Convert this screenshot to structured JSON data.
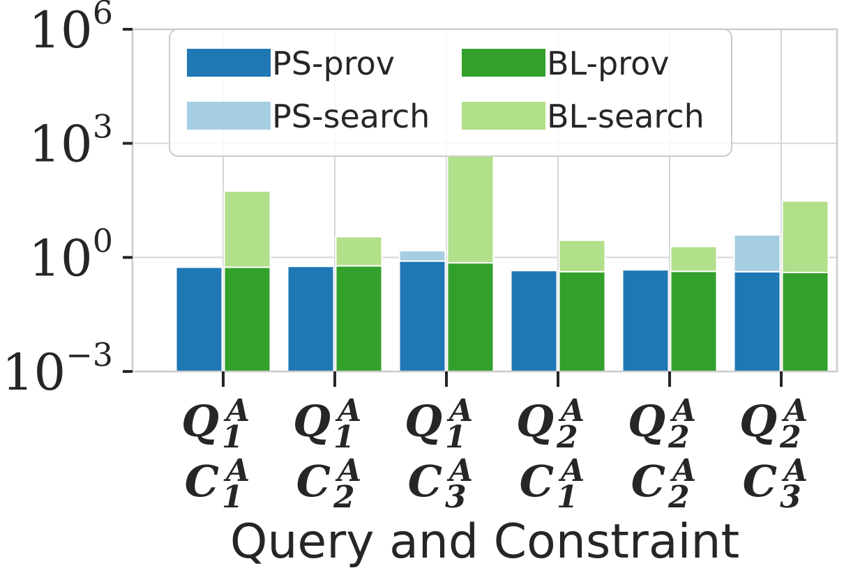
{
  "chart_data": {
    "type": "bar",
    "stacked": true,
    "log_scale_y": true,
    "ylim": [
      0.001,
      1000000
    ],
    "yticks": [
      {
        "value": 0.001,
        "base": "10",
        "exp": "−3"
      },
      {
        "value": 1,
        "base": "10",
        "exp": "0"
      },
      {
        "value": 1000,
        "base": "10",
        "exp": "3"
      },
      {
        "value": 1000000,
        "base": "10",
        "exp": "6"
      }
    ],
    "xlabel": "Query and Constraint",
    "ylabel": "",
    "grid": true,
    "legend_position": "top",
    "categories": [
      {
        "q": "Q",
        "q_sup": "A",
        "q_sub": "1",
        "c": "C",
        "c_sup": "A",
        "c_sub": "1"
      },
      {
        "q": "Q",
        "q_sup": "A",
        "q_sub": "1",
        "c": "C",
        "c_sup": "A",
        "c_sub": "2"
      },
      {
        "q": "Q",
        "q_sup": "A",
        "q_sub": "1",
        "c": "C",
        "c_sup": "A",
        "c_sub": "3"
      },
      {
        "q": "Q",
        "q_sup": "A",
        "q_sub": "2",
        "c": "C",
        "c_sup": "A",
        "c_sub": "1"
      },
      {
        "q": "Q",
        "q_sup": "A",
        "q_sub": "2",
        "c": "C",
        "c_sup": "A",
        "c_sub": "2"
      },
      {
        "q": "Q",
        "q_sup": "A",
        "q_sub": "2",
        "c": "C",
        "c_sup": "A",
        "c_sub": "3"
      }
    ],
    "series": [
      {
        "name": "PS-prov",
        "group": "PS",
        "color": "#1f77b4",
        "values": [
          0.55,
          0.58,
          0.8,
          0.45,
          0.47,
          0.42
        ]
      },
      {
        "name": "PS-search",
        "group": "PS",
        "color": "#a6cee3",
        "values": [
          0,
          0,
          0.7,
          0,
          0,
          3.5
        ]
      },
      {
        "name": "BL-prov",
        "group": "BL",
        "color": "#33a02c",
        "values": [
          0.55,
          0.6,
          0.72,
          0.42,
          0.43,
          0.4
        ]
      },
      {
        "name": "BL-search",
        "group": "BL",
        "color": "#b2df8a",
        "values": [
          55,
          2.9,
          470,
          2.4,
          1.5,
          30
        ]
      }
    ]
  }
}
